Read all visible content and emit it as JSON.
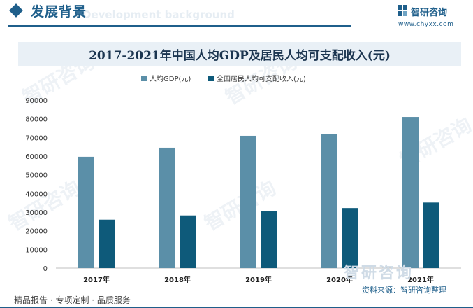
{
  "header": {
    "section_title": "发展背景",
    "section_subtitle": "Development background",
    "brand_name": "智研咨询",
    "brand_url": "www.chyxx.com"
  },
  "watermark_text": "智研咨询",
  "footer": {
    "left_text": "精品报告 · 专项定制 · 品质服务",
    "source_text": "资料来源：智研咨询整理"
  },
  "colors": {
    "gdp": "#5b8fa8",
    "income": "#0e5a7a",
    "accent": "#1f5f8b"
  },
  "chart_data": {
    "type": "bar",
    "title": "2017-2021年中国人均GDP及居民人均可支配收入(元)",
    "categories": [
      "2017年",
      "2018年",
      "2019年",
      "2020年",
      "2021年"
    ],
    "series": [
      {
        "name": "人均GDP(元)",
        "values": [
          59660,
          64520,
          70890,
          71830,
          80980
        ]
      },
      {
        "name": "全国居民人均可支配收入(元)",
        "values": [
          25974,
          28228,
          30733,
          32189,
          35128
        ]
      }
    ],
    "ylim": [
      0,
      90000
    ],
    "yticks": [
      0,
      10000,
      20000,
      30000,
      40000,
      50000,
      60000,
      70000,
      80000,
      90000
    ],
    "ytick_labels": [
      "0",
      "10000",
      "20000",
      "30000",
      "40000",
      "50000",
      "60000",
      "70000",
      "80000",
      "90000"
    ],
    "grid": false,
    "legend_position": "top-center"
  }
}
